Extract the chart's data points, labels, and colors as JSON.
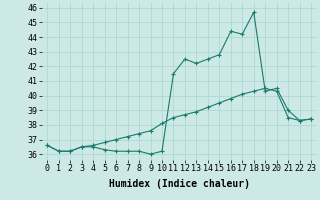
{
  "xlabel": "Humidex (Indice chaleur)",
  "x": [
    0,
    1,
    2,
    3,
    4,
    5,
    6,
    7,
    8,
    9,
    10,
    11,
    12,
    13,
    14,
    15,
    16,
    17,
    18,
    19,
    20,
    21,
    22,
    23
  ],
  "line1": [
    36.6,
    36.2,
    36.2,
    36.5,
    36.5,
    36.3,
    36.2,
    36.2,
    36.2,
    36.0,
    36.2,
    41.5,
    42.5,
    42.2,
    42.5,
    42.8,
    44.4,
    44.2,
    45.7,
    40.3,
    40.5,
    39.0,
    38.3,
    38.4
  ],
  "line2": [
    36.6,
    36.2,
    36.2,
    36.5,
    36.6,
    36.8,
    37.0,
    37.2,
    37.4,
    37.6,
    38.1,
    38.5,
    38.7,
    38.9,
    39.2,
    39.5,
    39.8,
    40.1,
    40.3,
    40.5,
    40.3,
    38.5,
    38.3,
    38.4
  ],
  "line_color": "#1a7a6e",
  "bg_color": "#cce9e6",
  "grid_color": "#a8d4d0",
  "ylim": [
    35.6,
    46.4
  ],
  "xlim": [
    -0.5,
    23.5
  ],
  "yticks": [
    36,
    37,
    38,
    39,
    40,
    41,
    42,
    43,
    44,
    45,
    46
  ],
  "xticks": [
    0,
    1,
    2,
    3,
    4,
    5,
    6,
    7,
    8,
    9,
    10,
    11,
    12,
    13,
    14,
    15,
    16,
    17,
    18,
    19,
    20,
    21,
    22,
    23
  ],
  "tick_labels": [
    "0",
    "1",
    "2",
    "3",
    "4",
    "5",
    "6",
    "7",
    "8",
    "9",
    "10",
    "11",
    "12",
    "13",
    "14",
    "15",
    "16",
    "17",
    "18",
    "19",
    "20",
    "21",
    "22",
    "23"
  ],
  "fontsize": 6.0,
  "xlabel_fontsize": 7.0,
  "marker": "+"
}
